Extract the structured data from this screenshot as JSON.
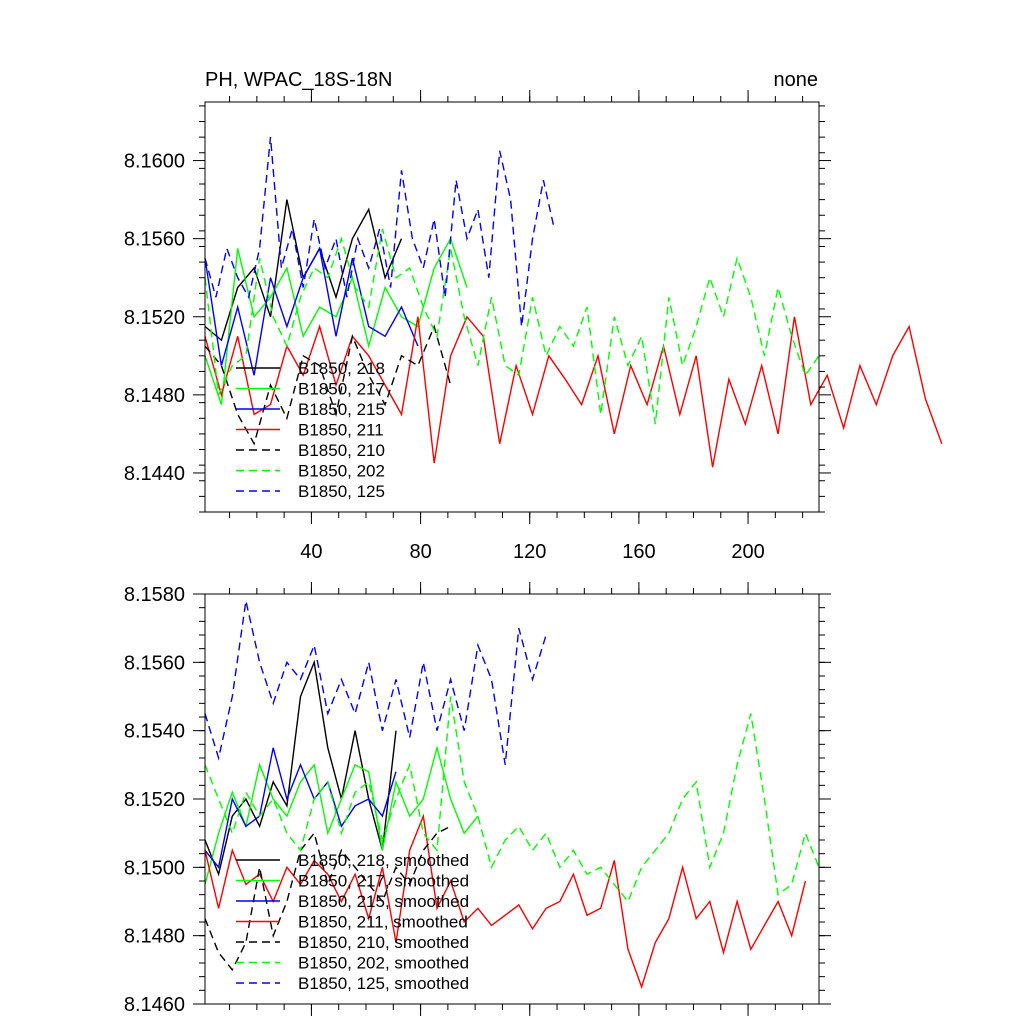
{
  "colors": {
    "218": "#000000",
    "217": "#00ff00",
    "215": "#0000ff",
    "211": "#ff0000",
    "210": "#000000",
    "202": "#00ff00",
    "125": "#0000ff"
  },
  "chart_data": [
    {
      "type": "line",
      "title_left": "PH, WPAC_18S-18N",
      "title_right": "none",
      "xlim": [
        1,
        226
      ],
      "ylim": [
        8.142,
        8.163
      ],
      "x_ticks": [
        40,
        80,
        120,
        160,
        200
      ],
      "x_tick_labels": [
        "40",
        "80",
        "120",
        "160",
        "200"
      ],
      "y_ticks": [
        8.144,
        8.148,
        8.152,
        8.156,
        8.16
      ],
      "y_tick_labels": [
        "8.1440",
        "8.1480",
        "8.1520",
        "8.1560",
        "8.1600"
      ],
      "grid": false,
      "legend_position": "lower-left",
      "series": [
        {
          "name": "B1850, 218",
          "dash": "solid",
          "colorKey": "218",
          "x_start": 1,
          "x_step": 6,
          "values": [
            8.1515,
            8.1508,
            8.1535,
            8.1545,
            8.152,
            8.158,
            8.154,
            8.1555,
            8.153,
            8.156,
            8.1575,
            8.154,
            8.156
          ]
        },
        {
          "name": "B1850, 217",
          "dash": "solid",
          "colorKey": "217",
          "x_start": 1,
          "x_step": 6,
          "values": [
            8.15,
            8.1475,
            8.1555,
            8.152,
            8.153,
            8.1545,
            8.151,
            8.1525,
            8.152,
            8.154,
            8.1505,
            8.1535,
            8.152,
            8.1515,
            8.1545,
            8.156,
            8.1535
          ]
        },
        {
          "name": "B1850, 215",
          "dash": "solid",
          "colorKey": "215",
          "x_start": 1,
          "x_step": 6,
          "values": [
            8.155,
            8.1495,
            8.1525,
            8.149,
            8.154,
            8.1515,
            8.154,
            8.1555,
            8.151,
            8.155,
            8.1515,
            8.151,
            8.1525,
            8.1505
          ]
        },
        {
          "name": "B1850, 211",
          "dash": "solid",
          "colorKey": "211",
          "x_start": 1,
          "x_step": 6,
          "values": [
            8.151,
            8.148,
            8.151,
            8.147,
            8.1475,
            8.1505,
            8.149,
            8.1515,
            8.1485,
            8.151,
            8.15,
            8.1485,
            8.147,
            8.152,
            8.1445,
            8.15,
            8.152,
            8.151,
            8.1455,
            8.1495,
            8.147,
            8.15,
            8.1488,
            8.1475,
            8.15,
            8.146,
            8.1495,
            8.1475,
            8.1505,
            8.147,
            8.15,
            8.1443,
            8.1488,
            8.1465,
            8.1495,
            8.146,
            8.152,
            8.1475,
            8.149,
            8.1463,
            8.1495,
            8.1475,
            8.15,
            8.1515,
            8.1478,
            8.1455
          ]
        },
        {
          "name": "B1850, 210",
          "dash": "dashed",
          "colorKey": "210",
          "x_start": 1,
          "x_step": 6,
          "values": [
            8.1505,
            8.1495,
            8.147,
            8.1455,
            8.1485,
            8.1468,
            8.15,
            8.1495,
            8.147,
            8.151,
            8.149,
            8.1475,
            8.15,
            8.1495,
            8.1515,
            8.1485
          ]
        },
        {
          "name": "B1850, 202",
          "dash": "dashed",
          "colorKey": "202",
          "x_start": 1,
          "x_step": 5,
          "values": [
            8.154,
            8.148,
            8.1495,
            8.15,
            8.155,
            8.152,
            8.1505,
            8.153,
            8.1545,
            8.154,
            8.156,
            8.1535,
            8.1525,
            8.1565,
            8.154,
            8.1545,
            8.1525,
            8.151,
            8.1555,
            8.152,
            8.1495,
            8.153,
            8.1495,
            8.149,
            8.153,
            8.15,
            8.1515,
            8.1505,
            8.1525,
            8.147,
            8.152,
            8.1495,
            8.151,
            8.1465,
            8.153,
            8.1495,
            8.1515,
            8.154,
            8.152,
            8.155,
            8.153,
            8.15,
            8.1535,
            8.151,
            8.149,
            8.15
          ]
        },
        {
          "name": "B1850, 125",
          "dash": "dashed",
          "colorKey": "125",
          "x_start": 1,
          "x_step": 4,
          "values": [
            8.155,
            8.153,
            8.1555,
            8.154,
            8.153,
            8.1555,
            8.1612,
            8.1545,
            8.1565,
            8.1535,
            8.157,
            8.1545,
            8.156,
            8.153,
            8.156,
            8.1545,
            8.1565,
            8.1535,
            8.1595,
            8.156,
            8.1545,
            8.157,
            8.153,
            8.159,
            8.156,
            8.1575,
            8.154,
            8.1605,
            8.158,
            8.1515,
            8.156,
            8.159,
            8.1565
          ]
        }
      ]
    },
    {
      "type": "line",
      "xlim": [
        1,
        226
      ],
      "ylim": [
        8.146,
        8.158
      ],
      "x_ticks": [
        40,
        80,
        120,
        160,
        200
      ],
      "y_ticks": [
        8.146,
        8.148,
        8.15,
        8.152,
        8.154,
        8.156,
        8.158
      ],
      "y_tick_labels": [
        "8.1460",
        "8.1480",
        "8.1500",
        "8.1520",
        "8.1540",
        "8.1560",
        "8.1580"
      ],
      "grid": false,
      "legend_position": "lower-left",
      "series": [
        {
          "name": "B1850, 218, smoothed",
          "dash": "solid",
          "colorKey": "218",
          "x_start": 1,
          "x_step": 5,
          "values": [
            8.1508,
            8.1498,
            8.1515,
            8.152,
            8.1512,
            8.1525,
            8.1518,
            8.155,
            8.156,
            8.1535,
            8.152,
            8.154,
            8.152,
            8.1505,
            8.154
          ]
        },
        {
          "name": "B1850, 217, smoothed",
          "dash": "solid",
          "colorKey": "217",
          "x_start": 1,
          "x_step": 5,
          "values": [
            8.1495,
            8.151,
            8.1522,
            8.1512,
            8.153,
            8.152,
            8.1515,
            8.1525,
            8.153,
            8.151,
            8.152,
            8.153,
            8.1528,
            8.1505,
            8.1525,
            8.1515,
            8.152,
            8.1535,
            8.152,
            8.151,
            8.1515
          ]
        },
        {
          "name": "B1850, 215, smoothed",
          "dash": "solid",
          "colorKey": "215",
          "x_start": 1,
          "x_step": 5,
          "values": [
            8.1505,
            8.15,
            8.152,
            8.1512,
            8.1515,
            8.1535,
            8.152,
            8.153,
            8.152,
            8.1525,
            8.1512,
            8.1518,
            8.152,
            8.1515,
            8.1528
          ]
        },
        {
          "name": "B1850, 211, smoothed",
          "dash": "solid",
          "colorKey": "211",
          "x_start": 1,
          "x_step": 5,
          "values": [
            8.1505,
            8.1488,
            8.1505,
            8.1495,
            8.1498,
            8.149,
            8.15,
            8.1495,
            8.1502,
            8.1498,
            8.149,
            8.1498,
            8.1485,
            8.15,
            8.1478,
            8.1505,
            8.1515,
            8.1488,
            8.1496,
            8.1484,
            8.1488,
            8.1483,
            8.1486,
            8.1489,
            8.1482,
            8.1488,
            8.149,
            8.1498,
            8.1486,
            8.1488,
            8.1502,
            8.1476,
            8.1465,
            8.1478,
            8.1485,
            8.15,
            8.1485,
            8.149,
            8.1475,
            8.149,
            8.1476,
            8.1483,
            8.149,
            8.148,
            8.1496
          ]
        },
        {
          "name": "B1850, 210, smoothed",
          "dash": "dashed",
          "colorKey": "210",
          "x_start": 1,
          "x_step": 5,
          "values": [
            8.1485,
            8.1475,
            8.147,
            8.1478,
            8.15,
            8.148,
            8.149,
            8.1505,
            8.151,
            8.1495,
            8.1505,
            8.15,
            8.1495,
            8.149,
            8.15,
            8.1495,
            8.1505,
            8.151,
            8.1512
          ]
        },
        {
          "name": "B1850, 202, smoothed",
          "dash": "dashed",
          "colorKey": "202",
          "x_start": 1,
          "x_step": 5,
          "values": [
            8.153,
            8.152,
            8.151,
            8.1522,
            8.1515,
            8.152,
            8.151,
            8.1505,
            8.152,
            8.1525,
            8.151,
            8.1522,
            8.1525,
            8.1508,
            8.152,
            8.153,
            8.151,
            8.1505,
            8.155,
            8.1525,
            8.1515,
            8.15,
            8.1508,
            8.1512,
            8.1505,
            8.151,
            8.15,
            8.1505,
            8.1498,
            8.15,
            8.1495,
            8.149,
            8.15,
            8.1505,
            8.151,
            8.152,
            8.1525,
            8.15,
            8.151,
            8.153,
            8.1545,
            8.152,
            8.1492,
            8.1495,
            8.151,
            8.15
          ]
        },
        {
          "name": "B1850, 125, smoothed",
          "dash": "dashed",
          "colorKey": "125",
          "x_start": 1,
          "x_step": 5,
          "values": [
            8.1545,
            8.1532,
            8.155,
            8.1578,
            8.156,
            8.1548,
            8.156,
            8.1555,
            8.1565,
            8.1545,
            8.1555,
            8.1545,
            8.156,
            8.154,
            8.1555,
            8.1538,
            8.156,
            8.154,
            8.1555,
            8.154,
            8.1565,
            8.1555,
            8.153,
            8.157,
            8.1555,
            8.1568
          ]
        }
      ]
    }
  ]
}
